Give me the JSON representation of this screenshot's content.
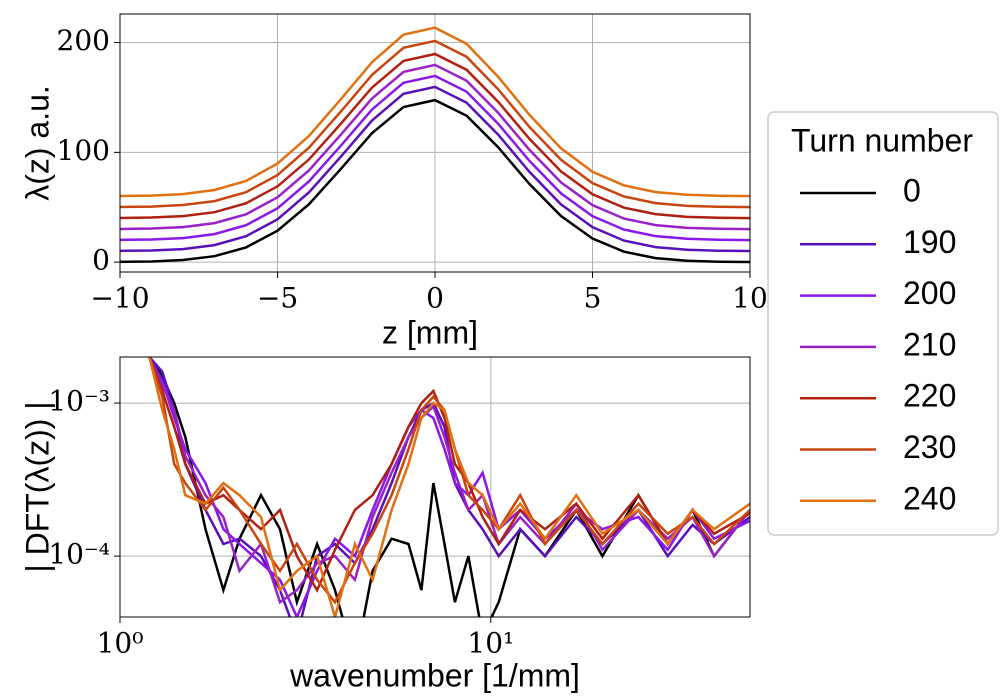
{
  "chart_data": [
    {
      "type": "line",
      "ylabel": "λ(z) a.u.",
      "xlabel": "z [mm]",
      "grid": true,
      "xlim": [
        -10,
        10
      ],
      "ylim": [
        -9,
        226
      ],
      "xticks": [
        {
          "value": -10,
          "label": "−10"
        },
        {
          "value": -5,
          "label": "−5"
        },
        0,
        5,
        10
      ],
      "yticks": [
        0,
        100,
        200
      ],
      "x": [
        -10,
        -9,
        -8,
        -7,
        -6,
        -5,
        -4,
        -3,
        -2,
        -1,
        0,
        1,
        2,
        3,
        4,
        5,
        6,
        7,
        8,
        9,
        10
      ],
      "series": [
        {
          "name": "0",
          "color": "#000000",
          "values": [
            0.2,
            0.6,
            1.9,
            5.4,
            13.4,
            28.6,
            52.8,
            84.5,
            117.4,
            141.3,
            147.6,
            133.5,
            104.8,
            71.2,
            42.0,
            21.5,
            9.5,
            3.7,
            1.2,
            0.4,
            0.1
          ]
        },
        {
          "name": "190",
          "color": "#5a10b8",
          "values": [
            10.2,
            10.6,
            11.9,
            15.5,
            23.6,
            39.0,
            63.6,
            95.7,
            129.0,
            153.3,
            159.6,
            145.3,
            116.2,
            82.2,
            52.6,
            31.8,
            19.6,
            13.7,
            11.2,
            10.4,
            10.1
          ]
        },
        {
          "name": "200",
          "color": "#8a18e8",
          "values": [
            20.2,
            20.6,
            21.9,
            25.5,
            33.6,
            49.0,
            73.6,
            105.7,
            139.0,
            163.3,
            169.6,
            155.3,
            126.2,
            92.2,
            62.6,
            41.8,
            29.6,
            23.7,
            21.2,
            20.4,
            20.1
          ]
        },
        {
          "name": "210",
          "color": "#9a20c8",
          "values": [
            30.2,
            30.6,
            31.9,
            35.5,
            43.6,
            59.0,
            83.6,
            115.7,
            149.0,
            173.3,
            179.6,
            165.3,
            136.2,
            102.2,
            72.6,
            51.8,
            39.6,
            33.7,
            31.2,
            30.4,
            30.1
          ]
        },
        {
          "name": "220",
          "color": "#b02010",
          "values": [
            40.2,
            40.6,
            41.9,
            45.5,
            53.6,
            69.0,
            93.6,
            125.7,
            159.0,
            183.3,
            189.6,
            175.3,
            146.2,
            112.2,
            82.6,
            61.8,
            49.6,
            43.7,
            41.2,
            40.4,
            40.1
          ]
        },
        {
          "name": "230",
          "color": "#c84510",
          "values": [
            50.2,
            50.6,
            52.0,
            55.6,
            63.7,
            79.3,
            104.3,
            136.8,
            170.5,
            195.2,
            201.5,
            187.1,
            157.6,
            123.1,
            93.2,
            72.0,
            59.8,
            53.8,
            51.2,
            50.4,
            50.1
          ]
        },
        {
          "name": "240",
          "color": "#e07010",
          "values": [
            60.2,
            60.6,
            62.0,
            65.7,
            73.9,
            89.7,
            115.0,
            147.9,
            182.1,
            207.1,
            213.5,
            198.9,
            169.0,
            134.1,
            103.7,
            82.3,
            69.9,
            63.8,
            61.3,
            60.4,
            60.1
          ]
        }
      ]
    },
    {
      "type": "line",
      "ylabel": "| DFT(λ(z)) |",
      "xlabel": "wavenumber [1/mm]",
      "grid": true,
      "log": true,
      "xlim": [
        1,
        50
      ],
      "ylim": [
        4e-05,
        0.002
      ],
      "xticks": [
        {
          "value": 1,
          "label": "10⁰"
        },
        {
          "value": 10,
          "label": "10¹"
        }
      ],
      "yticks": [
        {
          "value": 0.0001,
          "label": "10⁻⁴"
        },
        {
          "value": 0.001,
          "label": "10⁻³"
        }
      ],
      "x": [
        1.2,
        1.3,
        1.4,
        1.5,
        1.7,
        1.9,
        2.1,
        2.4,
        2.7,
        3.0,
        3.4,
        3.8,
        4.3,
        4.8,
        5.4,
        6.0,
        6.5,
        7.0,
        7.5,
        8.0,
        8.7,
        9.5,
        10.5,
        12,
        14,
        17,
        20,
        25,
        30,
        35,
        40,
        50
      ],
      "series": [
        {
          "color": "#000000",
          "values": [
            0.002,
            0.0015,
            0.001,
            0.0006,
            0.00015,
            6e-05,
            0.00013,
            0.00025,
            0.00015,
            5e-05,
            0.00012,
            6e-05,
            2e-05,
            8e-05,
            0.00013,
            0.00012,
            6e-05,
            0.0003,
            0.00012,
            5e-05,
            0.0001,
            3e-05,
            5e-05,
            0.00015,
            0.0001,
            0.0002,
            0.0001,
            0.00025,
            0.00012,
            0.0002,
            0.0001,
            0.0002
          ]
        },
        {
          "color": "#5a10b8",
          "values": [
            0.002,
            0.0016,
            0.0009,
            0.0004,
            0.0002,
            0.00012,
            0.00013,
            0.0001,
            6e-05,
            3e-05,
            0.0001,
            0.00012,
            9e-05,
            0.00015,
            0.0003,
            0.0006,
            0.0009,
            0.001,
            0.0007,
            0.0003,
            0.0002,
            0.00015,
            0.0001,
            0.00015,
            0.0001,
            0.00018,
            0.00012,
            0.0002,
            0.0001,
            0.00016,
            0.00012,
            0.00018
          ]
        },
        {
          "color": "#8a18e8",
          "values": [
            0.002,
            0.0014,
            0.0008,
            0.0005,
            0.0003,
            0.00015,
            0.00012,
            9e-05,
            7e-05,
            4e-05,
            8e-05,
            0.00013,
            0.0001,
            0.0002,
            0.0004,
            0.0007,
            0.0009,
            0.0008,
            0.0005,
            0.0003,
            0.00025,
            0.00035,
            0.00015,
            0.0002,
            0.00013,
            0.0002,
            0.00015,
            0.00018,
            0.00011,
            0.0002,
            0.00013,
            0.00017
          ]
        },
        {
          "color": "#9a20c8",
          "values": [
            0.002,
            0.0013,
            0.0009,
            0.00045,
            0.00025,
            0.00018,
            8e-05,
            0.00012,
            5e-05,
            6e-05,
            9e-05,
            0.0001,
            7e-05,
            0.00018,
            0.00035,
            0.0006,
            0.0008,
            0.00095,
            0.0006,
            0.00035,
            0.0002,
            0.00025,
            0.00012,
            0.00018,
            0.00012,
            0.00022,
            0.00011,
            0.0002,
            0.00013,
            0.00018,
            0.0001,
            0.0002
          ]
        },
        {
          "color": "#b02010",
          "values": [
            0.002,
            0.0012,
            0.0007,
            0.0004,
            0.00022,
            0.00025,
            0.0002,
            0.00015,
            0.0002,
            0.0001,
            6e-05,
            0.00011,
            0.0002,
            0.00025,
            0.0004,
            0.0007,
            0.001,
            0.0012,
            0.0008,
            0.0004,
            0.0003,
            0.00018,
            0.00012,
            0.0002,
            0.00015,
            0.00022,
            0.00013,
            0.00025,
            0.00012,
            0.0002,
            0.00014,
            0.00019
          ]
        },
        {
          "color": "#c84510",
          "values": [
            0.002,
            0.0011,
            0.0004,
            0.0003,
            0.0002,
            0.00028,
            0.0002,
            0.00012,
            8e-05,
            0.00012,
            7e-05,
            5e-05,
            9e-05,
            0.00014,
            0.00025,
            0.0005,
            0.0009,
            0.0011,
            0.0009,
            0.0005,
            0.00025,
            0.0002,
            0.00015,
            0.00025,
            0.00012,
            0.0002,
            0.00012,
            0.00022,
            0.00014,
            0.00018,
            0.00012,
            0.0002
          ]
        },
        {
          "color": "#e07010",
          "values": [
            0.002,
            0.0009,
            0.0005,
            0.00025,
            0.00022,
            0.0003,
            0.00025,
            0.00018,
            6e-05,
            8e-05,
            0.0001,
            4e-05,
            0.00012,
            7e-05,
            0.0002,
            0.0004,
            0.0008,
            0.001,
            0.0009,
            0.0005,
            0.0003,
            0.00025,
            0.00015,
            0.00022,
            0.00013,
            0.00025,
            0.00014,
            0.0002,
            0.00012,
            0.0002,
            0.00015,
            0.00022
          ]
        }
      ]
    }
  ],
  "legend": {
    "title": "Turn number"
  }
}
